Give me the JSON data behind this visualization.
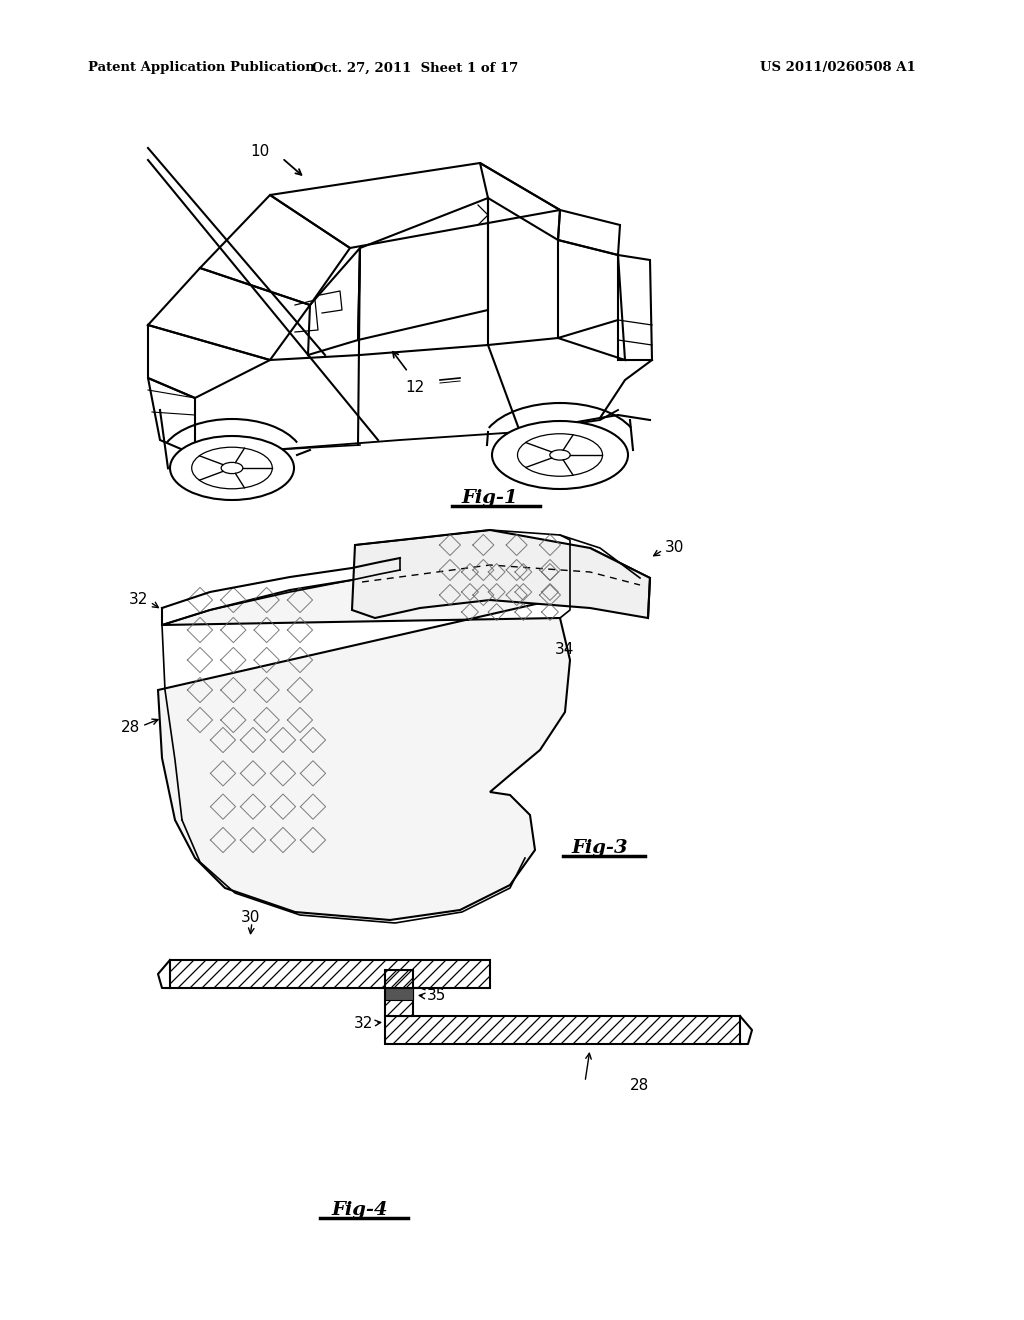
{
  "bg_color": "#ffffff",
  "header_left": "Patent Application Publication",
  "header_mid": "Oct. 27, 2011  Sheet 1 of 17",
  "header_right": "US 2011/0260508 A1",
  "fig1_label": "Fig-1",
  "fig3_label": "Fig-3",
  "fig4_label": "Fig-4",
  "label_10": "10",
  "label_12": "12",
  "label_28": "28",
  "label_30": "30",
  "label_32": "32",
  "label_34": "34",
  "label_35": "35",
  "line_color": "#000000",
  "hatch_color": "#555555",
  "adhesive_color": "#333333"
}
